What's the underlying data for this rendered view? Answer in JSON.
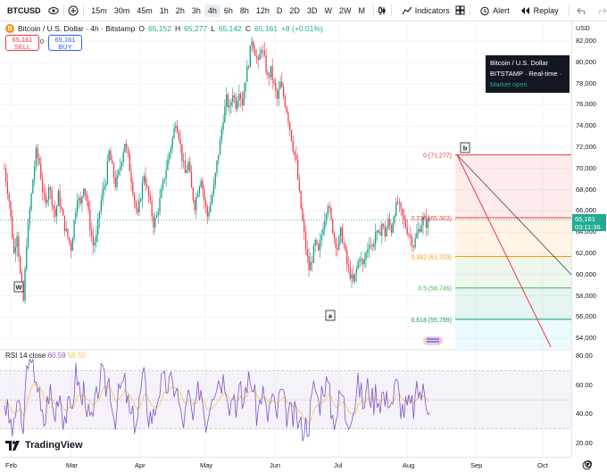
{
  "toolbar": {
    "symbol": "BTCUSD",
    "timeframes": [
      "15m",
      "30m",
      "45m",
      "1h",
      "2h",
      "3h",
      "4h",
      "6h",
      "8h",
      "12h",
      "D",
      "2D",
      "3D",
      "W",
      "2W",
      "M"
    ],
    "active_timeframe": "4h",
    "indicators_label": "Indicators",
    "alert_label": "Alert",
    "replay_label": "Replay"
  },
  "legend": {
    "title": "Bitcoin / U.S. Dollar · 4h · Bitstamp",
    "open_label": "O",
    "open": "65,152",
    "high_label": "H",
    "high": "65,277",
    "low_label": "L",
    "low": "65,142",
    "close_label": "C",
    "close": "65,161",
    "change": "+8 (+0.01%)",
    "sell_price": "65,161",
    "sell_label": "SELL",
    "spread": "0",
    "buy_price": "65,161",
    "buy_label": "BUY"
  },
  "tooltip": {
    "title": "Bitcoin / U.S. Dollar",
    "exchange": "BITSTAMP",
    "feed": "Real-time",
    "status": "Market open"
  },
  "price_axis": {
    "currency": "USD",
    "labels": [
      "82,000",
      "80,000",
      "78,000",
      "76,000",
      "74,000",
      "72,000",
      "70,000",
      "68,000",
      "66,000",
      "64,000",
      "62,000",
      "60,000",
      "58,000",
      "56,000",
      "54,000"
    ],
    "current_price": "65,161",
    "countdown": "03:11:36"
  },
  "fib_levels": [
    {
      "label": "0 (71,277)",
      "price": 71277,
      "color": "#f23645"
    },
    {
      "label": "0.236 (65,363)",
      "price": 65363,
      "color": "#f23645"
    },
    {
      "label": "0.382 (61,703)",
      "price": 61703,
      "color": "#ff9800"
    },
    {
      "label": "0.5 (58,746)",
      "price": 58746,
      "color": "#4caf50"
    },
    {
      "label": "0.618 (55,789)",
      "price": 55789,
      "color": "#089981"
    }
  ],
  "wave_labels": [
    {
      "label": "W"
    },
    {
      "label": "a"
    },
    {
      "label": "b"
    }
  ],
  "rsi": {
    "label": "RSI 14 close",
    "value": "60.59",
    "ma_value": "59.50",
    "axis_labels": [
      "80.00",
      "60.00",
      "40.00",
      "20.00"
    ]
  },
  "time_axis": {
    "labels": [
      "Feb",
      "Mar",
      "Apr",
      "May",
      "Jun",
      "Jul",
      "Aug",
      "Sep",
      "Oct"
    ]
  },
  "branding": {
    "logo_text": "TradingView"
  },
  "chart_data": {
    "type": "candlestick",
    "title": "",
    "ylim": [
      53000,
      83000
    ],
    "price_path": [
      [
        0,
        70000
      ],
      [
        3,
        67000
      ],
      [
        6,
        62000
      ],
      [
        8,
        64000
      ],
      [
        10,
        60000
      ],
      [
        12,
        57500
      ],
      [
        14,
        63000
      ],
      [
        16,
        66000
      ],
      [
        18,
        69000
      ],
      [
        20,
        71500
      ],
      [
        22,
        70500
      ],
      [
        24,
        68000
      ],
      [
        26,
        66500
      ],
      [
        28,
        68500
      ],
      [
        30,
        67000
      ],
      [
        32,
        65500
      ],
      [
        34,
        67500
      ],
      [
        36,
        66000
      ],
      [
        38,
        64500
      ],
      [
        40,
        63500
      ],
      [
        42,
        62500
      ],
      [
        44,
        65000
      ],
      [
        46,
        67500
      ],
      [
        48,
        66500
      ],
      [
        50,
        68500
      ],
      [
        52,
        67000
      ],
      [
        54,
        64500
      ],
      [
        56,
        62800
      ],
      [
        58,
        63500
      ],
      [
        60,
        66000
      ],
      [
        62,
        67800
      ],
      [
        64,
        69000
      ],
      [
        66,
        71500
      ],
      [
        68,
        70000
      ],
      [
        70,
        68500
      ],
      [
        72,
        69500
      ],
      [
        74,
        71000
      ],
      [
        76,
        72500
      ],
      [
        78,
        71000
      ],
      [
        80,
        69000
      ],
      [
        82,
        67000
      ],
      [
        84,
        65500
      ],
      [
        86,
        67500
      ],
      [
        88,
        69500
      ],
      [
        90,
        68000
      ],
      [
        92,
        66500
      ],
      [
        94,
        64800
      ],
      [
        96,
        65500
      ],
      [
        98,
        67000
      ],
      [
        100,
        68500
      ],
      [
        102,
        70000
      ],
      [
        104,
        71500
      ],
      [
        106,
        72800
      ],
      [
        108,
        74500
      ],
      [
        110,
        73200
      ],
      [
        112,
        71000
      ],
      [
        114,
        69500
      ],
      [
        116,
        70500
      ],
      [
        118,
        68000
      ],
      [
        120,
        66500
      ],
      [
        122,
        68000
      ],
      [
        124,
        69200
      ],
      [
        126,
        67000
      ],
      [
        128,
        65500
      ],
      [
        130,
        66800
      ],
      [
        132,
        68200
      ],
      [
        134,
        70500
      ],
      [
        136,
        72500
      ],
      [
        138,
        74800
      ],
      [
        140,
        76500
      ],
      [
        142,
        75500
      ],
      [
        144,
        77200
      ],
      [
        146,
        76000
      ],
      [
        148,
        77500
      ],
      [
        150,
        76200
      ],
      [
        152,
        78500
      ],
      [
        154,
        80000
      ],
      [
        156,
        82200
      ],
      [
        158,
        81000
      ],
      [
        160,
        79800
      ],
      [
        162,
        81500
      ],
      [
        164,
        80200
      ],
      [
        166,
        78500
      ],
      [
        168,
        79200
      ],
      [
        170,
        77800
      ],
      [
        172,
        76500
      ],
      [
        174,
        78000
      ],
      [
        176,
        76800
      ],
      [
        178,
        75500
      ],
      [
        180,
        73800
      ],
      [
        182,
        72000
      ],
      [
        184,
        70500
      ],
      [
        186,
        67500
      ],
      [
        188,
        65000
      ],
      [
        190,
        62500
      ],
      [
        192,
        60500
      ],
      [
        194,
        61500
      ],
      [
        196,
        63000
      ],
      [
        198,
        62000
      ],
      [
        200,
        63800
      ],
      [
        202,
        65500
      ],
      [
        204,
        66800
      ],
      [
        206,
        65000
      ],
      [
        208,
        63500
      ],
      [
        210,
        62500
      ],
      [
        212,
        64000
      ],
      [
        214,
        62800
      ],
      [
        216,
        61000
      ],
      [
        218,
        60000
      ],
      [
        220,
        59200
      ],
      [
        222,
        60500
      ],
      [
        224,
        61800
      ],
      [
        226,
        60800
      ],
      [
        228,
        62000
      ],
      [
        230,
        63200
      ],
      [
        232,
        62500
      ],
      [
        234,
        64000
      ],
      [
        236,
        63500
      ],
      [
        238,
        64800
      ],
      [
        240,
        63800
      ],
      [
        242,
        65000
      ],
      [
        244,
        64200
      ],
      [
        246,
        66000
      ],
      [
        248,
        66800
      ],
      [
        250,
        65800
      ],
      [
        252,
        65000
      ],
      [
        254,
        64200
      ],
      [
        256,
        63500
      ],
      [
        258,
        62800
      ],
      [
        260,
        63800
      ],
      [
        262,
        64500
      ],
      [
        264,
        65200
      ],
      [
        266,
        64800
      ],
      [
        268,
        65161
      ]
    ],
    "x_start": "Jan 27",
    "x_end": "Aug 16"
  }
}
